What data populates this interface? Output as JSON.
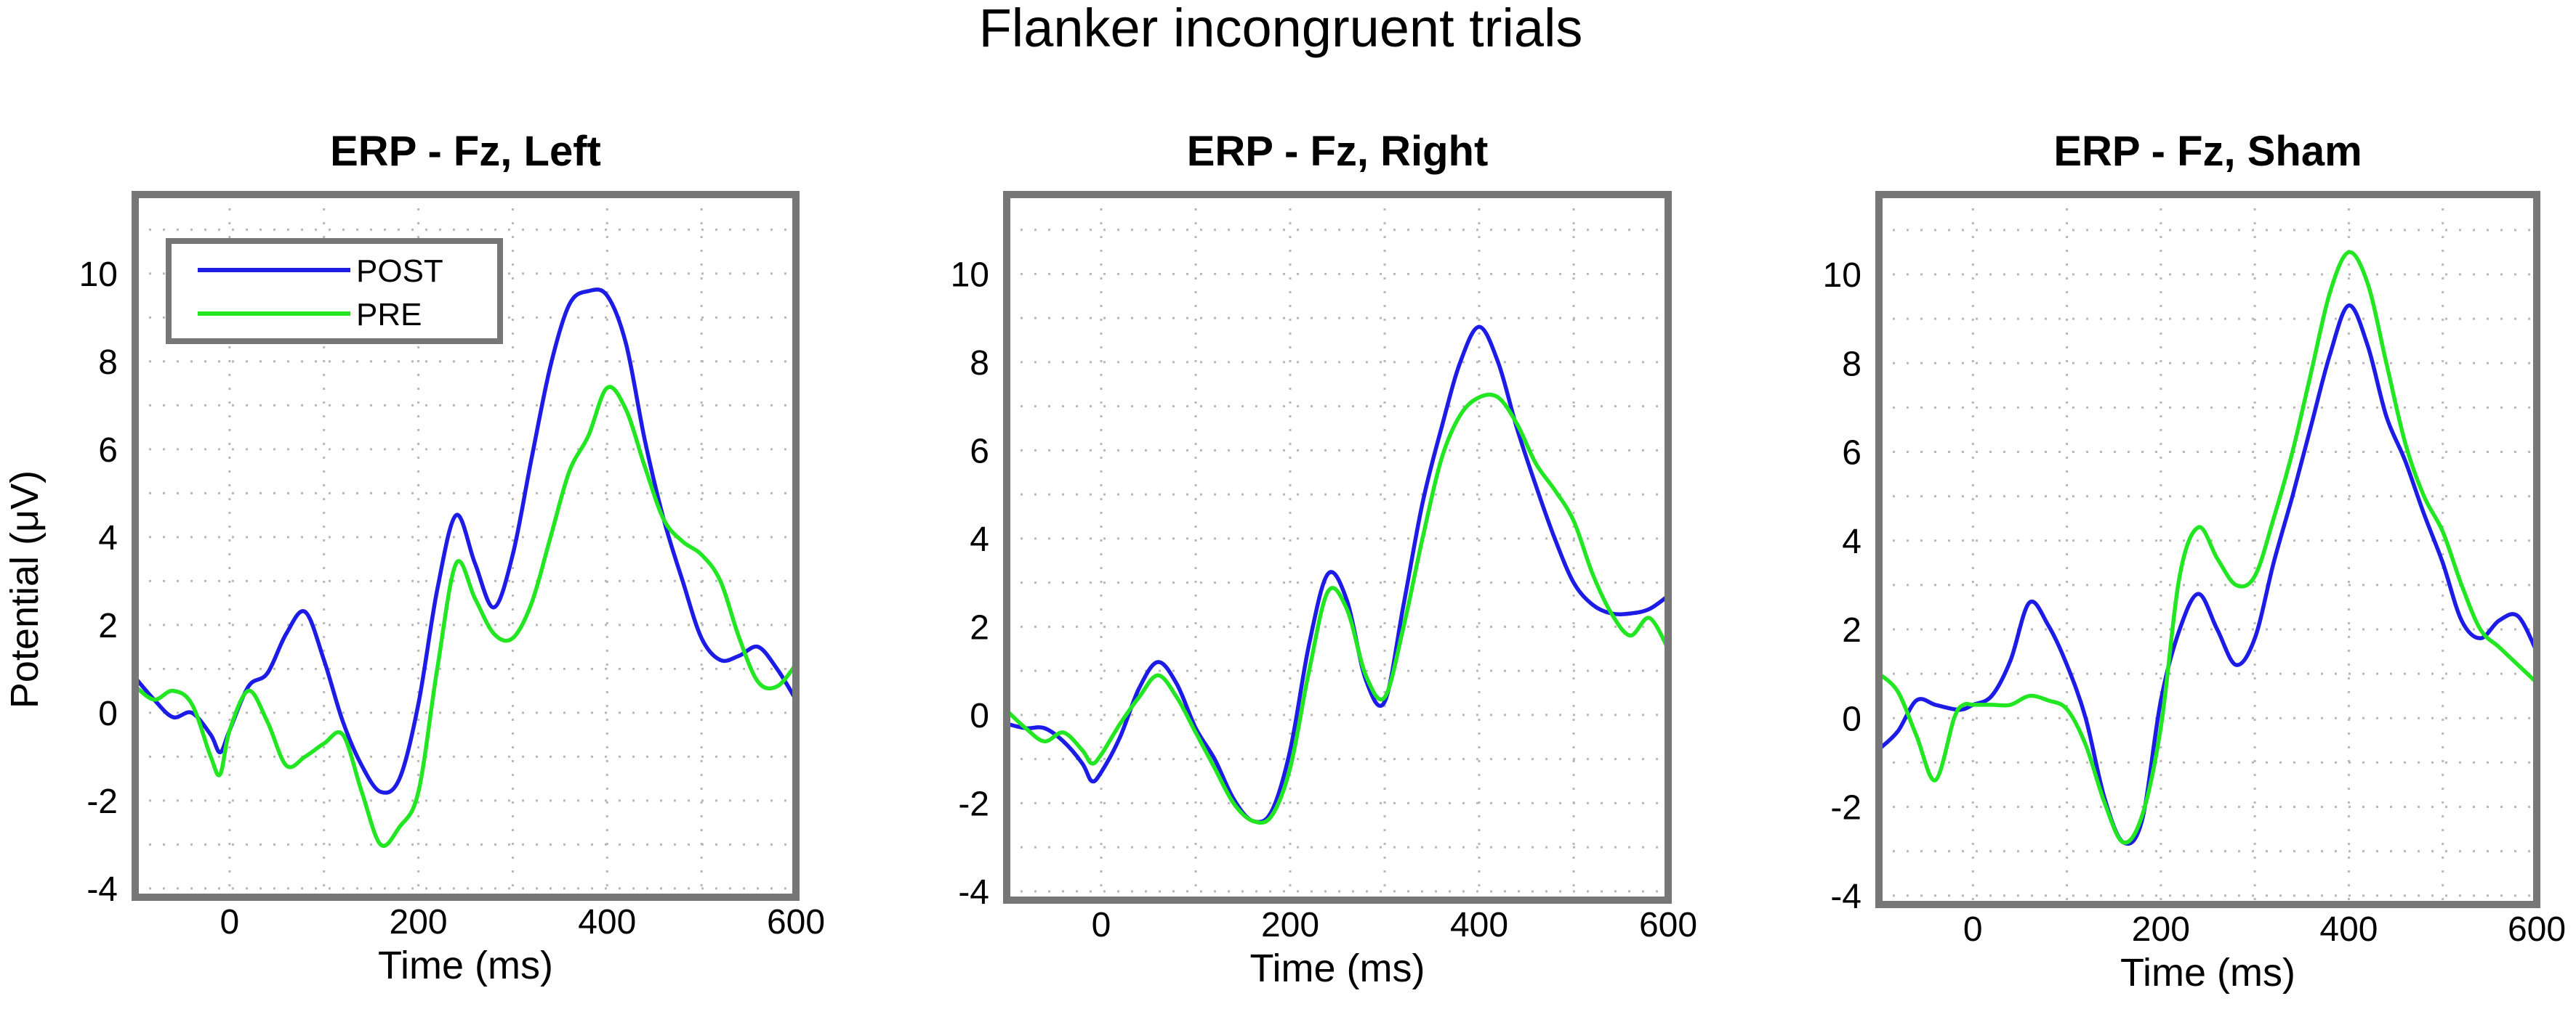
{
  "figure_title": "Flanker incongruent trials",
  "colors": {
    "POST": "#1c1ce6",
    "PRE": "#22e622"
  },
  "chart_data": [
    {
      "type": "line",
      "title": "ERP - Fz, Left",
      "xlabel": "Time (ms)",
      "ylabel": "Potential (μV)",
      "xlim": [
        -100,
        600
      ],
      "ylim": [
        -4.2,
        11.8
      ],
      "xticks": [
        0,
        200,
        400,
        600
      ],
      "yticks": [
        -4,
        -2,
        0,
        2,
        4,
        6,
        8,
        10
      ],
      "grid": true,
      "legend": {
        "position": "top-left",
        "entries": [
          "POST",
          "PRE"
        ]
      },
      "series": [
        {
          "name": "POST",
          "color": "#1c1ce6",
          "x": [
            -100,
            -80,
            -60,
            -40,
            -20,
            -10,
            0,
            20,
            40,
            60,
            80,
            100,
            120,
            140,
            160,
            180,
            200,
            220,
            240,
            260,
            280,
            300,
            320,
            340,
            360,
            380,
            400,
            420,
            440,
            460,
            480,
            500,
            520,
            540,
            560,
            580,
            600
          ],
          "y": [
            0.8,
            0.3,
            -0.1,
            0.0,
            -0.5,
            -0.9,
            -0.4,
            0.6,
            0.9,
            1.8,
            2.3,
            1.2,
            -0.2,
            -1.2,
            -1.8,
            -1.5,
            0.2,
            2.8,
            4.5,
            3.4,
            2.4,
            3.6,
            5.8,
            7.9,
            9.3,
            9.6,
            9.5,
            8.4,
            6.2,
            4.4,
            3.0,
            1.7,
            1.2,
            1.3,
            1.5,
            1.0,
            0.3
          ]
        },
        {
          "name": "PRE",
          "color": "#22e622",
          "x": [
            -100,
            -80,
            -60,
            -40,
            -20,
            -10,
            0,
            20,
            40,
            60,
            80,
            100,
            120,
            140,
            160,
            180,
            200,
            220,
            240,
            260,
            280,
            300,
            320,
            340,
            360,
            380,
            400,
            420,
            440,
            460,
            480,
            500,
            520,
            540,
            560,
            580,
            600
          ],
          "y": [
            0.6,
            0.3,
            0.5,
            0.2,
            -1.0,
            -1.4,
            -0.4,
            0.5,
            -0.2,
            -1.2,
            -1.0,
            -0.7,
            -0.5,
            -1.8,
            -3.0,
            -2.6,
            -1.8,
            1.0,
            3.4,
            2.6,
            1.8,
            1.7,
            2.5,
            4.0,
            5.5,
            6.3,
            7.4,
            6.9,
            5.6,
            4.4,
            3.9,
            3.6,
            3.0,
            1.7,
            0.7,
            0.6,
            1.1
          ]
        }
      ]
    },
    {
      "type": "line",
      "title": "ERP - Fz, Right",
      "xlabel": "Time (ms)",
      "ylabel": "",
      "xlim": [
        -100,
        600
      ],
      "ylim": [
        -4.2,
        11.8
      ],
      "xticks": [
        0,
        200,
        400,
        600
      ],
      "yticks": [
        -4,
        -2,
        0,
        2,
        4,
        6,
        8,
        10
      ],
      "grid": true,
      "series": [
        {
          "name": "POST",
          "color": "#1c1ce6",
          "x": [
            -100,
            -80,
            -60,
            -40,
            -20,
            -10,
            0,
            20,
            40,
            60,
            80,
            100,
            120,
            140,
            160,
            180,
            200,
            220,
            240,
            260,
            280,
            300,
            320,
            340,
            360,
            380,
            400,
            420,
            440,
            460,
            480,
            500,
            520,
            540,
            560,
            580,
            600
          ],
          "y": [
            -0.2,
            -0.3,
            -0.3,
            -0.6,
            -1.1,
            -1.5,
            -1.3,
            -0.5,
            0.6,
            1.2,
            0.7,
            -0.3,
            -1.0,
            -1.9,
            -2.4,
            -2.2,
            -0.8,
            1.6,
            3.2,
            2.6,
            0.8,
            0.3,
            2.5,
            4.8,
            6.5,
            8.0,
            8.8,
            8.0,
            6.5,
            5.2,
            4.0,
            3.0,
            2.5,
            2.3,
            2.3,
            2.4,
            2.7
          ]
        },
        {
          "name": "PRE",
          "color": "#22e622",
          "x": [
            -100,
            -80,
            -60,
            -40,
            -20,
            -10,
            0,
            20,
            40,
            60,
            80,
            100,
            120,
            140,
            160,
            180,
            200,
            220,
            240,
            260,
            280,
            300,
            320,
            340,
            360,
            380,
            400,
            420,
            440,
            460,
            480,
            500,
            520,
            540,
            560,
            580,
            600
          ],
          "y": [
            0.1,
            -0.3,
            -0.6,
            -0.4,
            -0.8,
            -1.1,
            -0.9,
            -0.2,
            0.4,
            0.9,
            0.4,
            -0.4,
            -1.2,
            -2.0,
            -2.4,
            -2.3,
            -1.2,
            1.0,
            2.8,
            2.4,
            0.9,
            0.4,
            2.0,
            4.0,
            5.8,
            6.8,
            7.2,
            7.2,
            6.6,
            5.7,
            5.1,
            4.4,
            3.2,
            2.3,
            1.8,
            2.2,
            1.5
          ]
        }
      ]
    },
    {
      "type": "line",
      "title": "ERP - Fz, Sham",
      "xlabel": "Time (ms)",
      "ylabel": "",
      "xlim": [
        -100,
        600
      ],
      "ylim": [
        -4.2,
        11.8
      ],
      "xticks": [
        0,
        200,
        400,
        600
      ],
      "yticks": [
        -4,
        -2,
        0,
        2,
        4,
        6,
        8,
        10
      ],
      "grid": true,
      "series": [
        {
          "name": "POST",
          "color": "#1c1ce6",
          "x": [
            -100,
            -80,
            -60,
            -40,
            -20,
            -10,
            0,
            20,
            40,
            60,
            80,
            100,
            120,
            140,
            160,
            180,
            200,
            220,
            240,
            260,
            280,
            300,
            320,
            340,
            360,
            380,
            400,
            420,
            440,
            460,
            480,
            500,
            520,
            540,
            560,
            580,
            600
          ],
          "y": [
            -0.7,
            -0.3,
            0.4,
            0.3,
            0.2,
            0.2,
            0.3,
            0.5,
            1.3,
            2.6,
            2.1,
            1.2,
            0.0,
            -1.8,
            -2.8,
            -2.3,
            0.4,
            2.0,
            2.8,
            2.0,
            1.2,
            1.8,
            3.5,
            5.0,
            6.6,
            8.2,
            9.3,
            8.4,
            6.8,
            5.8,
            4.6,
            3.5,
            2.2,
            1.8,
            2.2,
            2.3,
            1.5
          ]
        },
        {
          "name": "PRE",
          "color": "#22e622",
          "x": [
            -100,
            -80,
            -60,
            -40,
            -20,
            -10,
            0,
            20,
            40,
            60,
            80,
            100,
            120,
            140,
            160,
            180,
            200,
            220,
            240,
            260,
            280,
            300,
            320,
            340,
            360,
            380,
            400,
            420,
            440,
            460,
            480,
            500,
            520,
            540,
            560,
            580,
            600
          ],
          "y": [
            1.0,
            0.6,
            -0.4,
            -1.4,
            0.0,
            0.3,
            0.3,
            0.3,
            0.3,
            0.5,
            0.4,
            0.2,
            -0.6,
            -1.9,
            -2.8,
            -2.2,
            -0.2,
            3.2,
            4.3,
            3.6,
            3.0,
            3.2,
            4.5,
            6.0,
            7.8,
            9.6,
            10.5,
            9.8,
            8.0,
            6.2,
            5.0,
            4.2,
            3.0,
            2.0,
            1.6,
            1.2,
            0.8
          ]
        }
      ]
    }
  ]
}
